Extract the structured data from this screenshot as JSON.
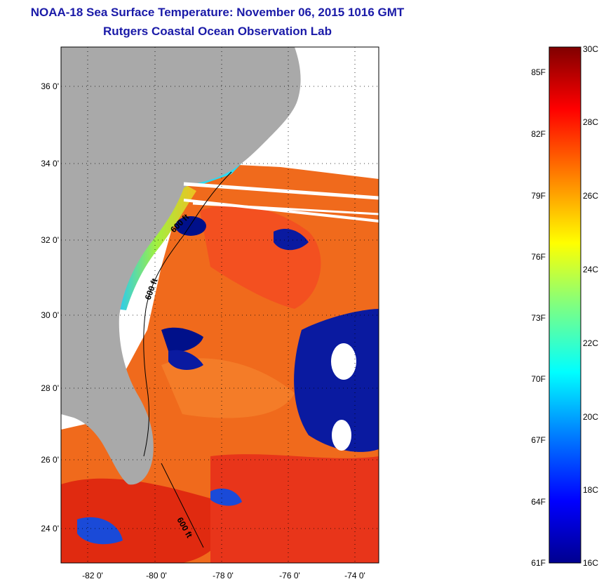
{
  "title": "NOAA-18 Sea Surface Temperature:  November 06, 2015 1016 GMT",
  "subtitle": "Rutgers Coastal Ocean Observation Lab",
  "lat_ticks": [
    "36 0'",
    "34 0'",
    "32 0'",
    "30 0'",
    "28 0'",
    "26 0'",
    "24 0'"
  ],
  "lon_ticks": [
    "-82 0'",
    "-80 0'",
    "-78 0'",
    "-76 0'",
    "-74 0'"
  ],
  "contour_labels": [
    "600 ft",
    "600 ft",
    "600 ft"
  ],
  "colorbar": {
    "fahrenheit": [
      "85F",
      "82F",
      "79F",
      "76F",
      "73F",
      "70F",
      "67F",
      "64F",
      "61F"
    ],
    "celsius": [
      "30C",
      "28C",
      "26C",
      "24C",
      "22C",
      "20C",
      "18C",
      "16C"
    ],
    "colors": [
      "#00008f",
      "#0000ff",
      "#0080ff",
      "#00ffff",
      "#80ff80",
      "#ffff00",
      "#ff8000",
      "#ff0000",
      "#800000"
    ]
  },
  "land_color": "#a9a9a9"
}
